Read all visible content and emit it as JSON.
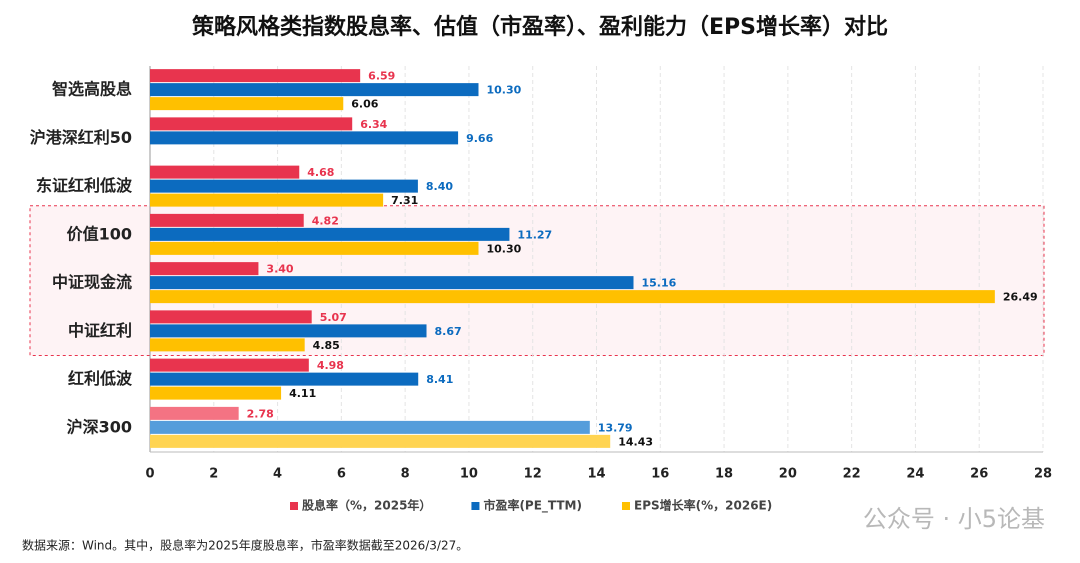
{
  "chart_data": {
    "type": "bar",
    "orientation": "horizontal",
    "title": "策略风格类指数股息率、估值（市盈率）、盈利能力（EPS增长率）对比",
    "categories": [
      "智选高股息",
      "沪港深红利50",
      "东证红利低波",
      "价值100",
      "中证现金流",
      "中证红利",
      "红利低波",
      "沪深300"
    ],
    "series": [
      {
        "name": "股息率（%，2025年）",
        "color": "#e8344e",
        "label_color": "#e8344e",
        "colors": [
          "#e8344e",
          "#e8344e",
          "#e8344e",
          "#e8344e",
          "#e8344e",
          "#e8344e",
          "#e8344e",
          "#f47383"
        ],
        "values": [
          6.59,
          6.34,
          4.68,
          4.82,
          3.4,
          5.07,
          4.98,
          2.78
        ],
        "value_labels": [
          "6.59",
          "6.34",
          "4.68",
          "4.82",
          "3.40",
          "5.07",
          "4.98",
          "2.78"
        ]
      },
      {
        "name": "市盈率(PE_TTM)",
        "color": "#0c6bbf",
        "label_color": "#0c6bbf",
        "colors": [
          "#0c6bbf",
          "#0c6bbf",
          "#0c6bbf",
          "#0c6bbf",
          "#0c6bbf",
          "#0c6bbf",
          "#0c6bbf",
          "#559ddb"
        ],
        "values": [
          10.3,
          9.66,
          8.4,
          11.27,
          15.16,
          8.67,
          8.41,
          13.79
        ],
        "value_labels": [
          "10.30",
          "9.66",
          "8.40",
          "11.27",
          "15.16",
          "8.67",
          "8.41",
          "13.79"
        ]
      },
      {
        "name": "EPS增长率(%，2026E)",
        "color": "#ffc000",
        "label_color": "#111111",
        "colors": [
          "#ffc000",
          "#ffc000",
          "#ffc000",
          "#ffc000",
          "#ffc000",
          "#ffc000",
          "#ffc000",
          "#ffd452"
        ],
        "values": [
          6.06,
          null,
          7.31,
          10.3,
          26.49,
          4.85,
          4.11,
          14.43
        ],
        "value_labels": [
          "6.06",
          null,
          "7.31",
          "10.30",
          "26.49",
          "4.85",
          "4.11",
          "14.43"
        ]
      }
    ],
    "xlim": [
      0,
      28
    ],
    "xticks": [
      0,
      2,
      4,
      6,
      8,
      10,
      12,
      14,
      16,
      18,
      20,
      22,
      24,
      26,
      28
    ],
    "grid": true,
    "legend": "bottom",
    "source": "数据来源：Wind。其中，股息率为2025年度股息率，市盈率数据截至2026/3/27。",
    "watermark": "公众号 · 小5论基"
  }
}
